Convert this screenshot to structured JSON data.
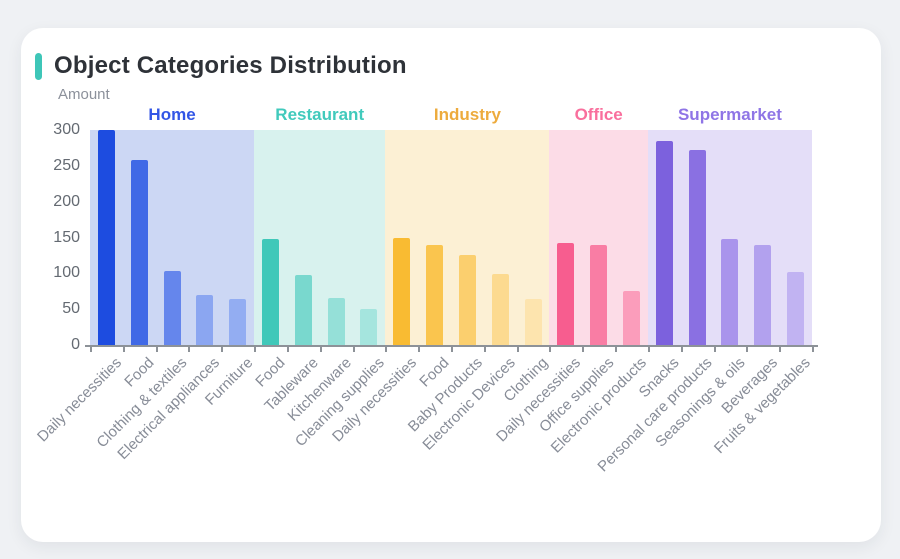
{
  "theme": {
    "accent_color": "#3ec6b8",
    "card_background": "#ffffff",
    "page_background": "#eff1f4"
  },
  "chart_data": {
    "type": "bar",
    "title": "Object Categories Distribution",
    "ylabel": "Amount",
    "ylim": [
      0,
      300
    ],
    "yticks": [
      0,
      50,
      100,
      150,
      200,
      250,
      300
    ],
    "grid": false,
    "legend_position": "none",
    "groups": [
      {
        "name": "Home",
        "label_color": "#3356e6",
        "band_color": "#ccd7f4",
        "categories": [
          "Daily necessities",
          "Food",
          "Clothing & textiles",
          "Electrical appliances",
          "Furniture"
        ],
        "values": [
          300,
          258,
          103,
          70,
          64
        ],
        "bar_colors": [
          "#1d4ce0",
          "#4069e6",
          "#6586ec",
          "#8ba6f1",
          "#93adf2"
        ]
      },
      {
        "name": "Restaurant",
        "label_color": "#41cabc",
        "band_color": "#d8f2ee",
        "categories": [
          "Food",
          "Tableware",
          "Kitchenware",
          "Cleaning supplies"
        ],
        "values": [
          148,
          97,
          65,
          50
        ],
        "bar_colors": [
          "#40c8b9",
          "#79d8ce",
          "#95e0d8",
          "#a5e5de"
        ]
      },
      {
        "name": "Industry",
        "label_color": "#edab3d",
        "band_color": "#fcf0d4",
        "categories": [
          "Daily necessities",
          "Food",
          "Baby Products",
          "Electronic Devices",
          "Clothing"
        ],
        "values": [
          150,
          139,
          126,
          99,
          64
        ],
        "bar_colors": [
          "#f9bb32",
          "#fac54e",
          "#fbcf6e",
          "#fcda90",
          "#fde4ae"
        ]
      },
      {
        "name": "Office",
        "label_color": "#f96f9d",
        "band_color": "#fcdce7",
        "categories": [
          "Daily necessities",
          "Office supplies",
          "Electronic products"
        ],
        "values": [
          142,
          139,
          75
        ],
        "bar_colors": [
          "#f75d8f",
          "#f97da4",
          "#fb9dbb"
        ]
      },
      {
        "name": "Supermarket",
        "label_color": "#8f75e6",
        "band_color": "#e4def8",
        "categories": [
          "Snacks",
          "Personal care products",
          "Seasonings & oils",
          "Beverages",
          "Fruits & vegetables"
        ],
        "values": [
          285,
          272,
          148,
          140,
          102
        ],
        "bar_colors": [
          "#7c61dd",
          "#8a70e2",
          "#a994ec",
          "#b2a1ee",
          "#c1b3f2"
        ]
      }
    ]
  }
}
